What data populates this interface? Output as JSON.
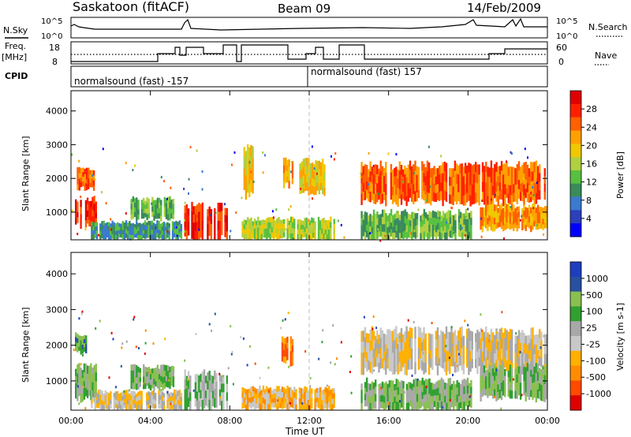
{
  "header": {
    "station": "Saskatoon (fitACF)",
    "beam": "Beam 09",
    "date": "14/Feb/2009"
  },
  "top_panels": {
    "nsky_label": "N.Sky",
    "nsky_ticks": [
      "10^5",
      "10^0"
    ],
    "nsearch_label": "N.Search",
    "nsearch_ticks": [
      "10^5",
      "10^0"
    ],
    "freq_label_1": "Freq.",
    "freq_label_2": "[MHz]",
    "freq_ticks": [
      "18",
      "8"
    ],
    "nave_label": "Nave",
    "nave_ticks": [
      "60",
      "0"
    ],
    "cpid_label": "CPID",
    "cpid_1": "normalsound (fast) -157",
    "cpid_2": "normalsound (fast) 157"
  },
  "colors": {
    "power": [
      "#0000ff",
      "#2d3fbb",
      "#3a7acf",
      "#3a8a5a",
      "#58c040",
      "#b0d040",
      "#f0c800",
      "#ffa000",
      "#ff6000",
      "#ff1f00",
      "#e00000"
    ],
    "velocity": [
      "#e00000",
      "#ff4a00",
      "#ff8c00",
      "#ffb000",
      "#c8c8c8",
      "#a8a8a8",
      "#30a030",
      "#8ac050",
      "#2850a0",
      "#1e3ec0"
    ]
  },
  "chart_data": [
    {
      "type": "heatmap",
      "quantity": "Power",
      "ylabel": "Slant Range [km]",
      "colorbar_label": "Power [dB]",
      "colorbar_ticks": [
        "28",
        "24",
        "20",
        "16",
        "12",
        "8",
        "4"
      ],
      "ylim": [
        180,
        4600
      ],
      "yticks": [
        "1000",
        "2000",
        "3000",
        "4000"
      ],
      "xlim_hours": [
        0,
        24
      ],
      "regions": [
        {
          "t": [
            0.2,
            1.3
          ],
          "r": [
            600,
            1400
          ],
          "level": 9
        },
        {
          "t": [
            0.2,
            1.2
          ],
          "r": [
            1700,
            2300
          ],
          "level": 8
        },
        {
          "t": [
            1.0,
            5.6
          ],
          "r": [
            200,
            700
          ],
          "level": 3
        },
        {
          "t": [
            3.0,
            5.2
          ],
          "r": [
            800,
            1400
          ],
          "level": 4
        },
        {
          "t": [
            5.7,
            7.9
          ],
          "r": [
            200,
            1200
          ],
          "level": 9
        },
        {
          "t": [
            8.6,
            13.3
          ],
          "r": [
            200,
            800
          ],
          "level": 5
        },
        {
          "t": [
            8.6,
            9.2
          ],
          "r": [
            1500,
            3000
          ],
          "level": 6
        },
        {
          "t": [
            10.6,
            11.2
          ],
          "r": [
            1800,
            2600
          ],
          "level": 7
        },
        {
          "t": [
            11.5,
            12.9
          ],
          "r": [
            1600,
            2500
          ],
          "level": 6
        },
        {
          "t": [
            14.6,
            24.0
          ],
          "r": [
            1300,
            2400
          ],
          "level": 8
        },
        {
          "t": [
            14.6,
            20.2
          ],
          "r": [
            200,
            1000
          ],
          "level": 4
        },
        {
          "t": [
            20.6,
            24.0
          ],
          "r": [
            500,
            1200
          ],
          "level": 7
        }
      ]
    },
    {
      "type": "heatmap",
      "quantity": "Velocity",
      "ylabel": "Slant Range [km]",
      "colorbar_label": "Velocity [m s-1]",
      "colorbar_ticks": [
        "1000",
        "500",
        "100",
        "25",
        "-25",
        "-100",
        "-500",
        "-1000"
      ],
      "ylim": [
        180,
        4600
      ],
      "yticks": [
        "1000",
        "2000",
        "3000",
        "4000"
      ],
      "xlim_hours": [
        0,
        24
      ],
      "xlabel": "Time UT",
      "xticks": [
        "00:00",
        "04:00",
        "08:00",
        "12:00",
        "16:00",
        "20:00",
        "00:00"
      ],
      "regions": [
        {
          "t": [
            0.2,
            1.3
          ],
          "r": [
            500,
            1400
          ],
          "level": 6
        },
        {
          "t": [
            0.2,
            0.8
          ],
          "r": [
            1800,
            2300
          ],
          "level": 7
        },
        {
          "t": [
            1.0,
            5.6
          ],
          "r": [
            200,
            700
          ],
          "level": 4
        },
        {
          "t": [
            3.0,
            5.2
          ],
          "r": [
            800,
            1400
          ],
          "level": 6
        },
        {
          "t": [
            5.7,
            7.9
          ],
          "r": [
            200,
            1200
          ],
          "level": 5
        },
        {
          "t": [
            8.6,
            13.3
          ],
          "r": [
            200,
            800
          ],
          "level": 3
        },
        {
          "t": [
            10.6,
            11.2
          ],
          "r": [
            1500,
            2200
          ],
          "level": 2
        },
        {
          "t": [
            14.6,
            24.0
          ],
          "r": [
            1300,
            2400
          ],
          "level": 4
        },
        {
          "t": [
            14.6,
            20.2
          ],
          "r": [
            200,
            1000
          ],
          "level": 6
        },
        {
          "t": [
            20.6,
            24.0
          ],
          "r": [
            500,
            1400
          ],
          "level": 6
        }
      ]
    }
  ]
}
